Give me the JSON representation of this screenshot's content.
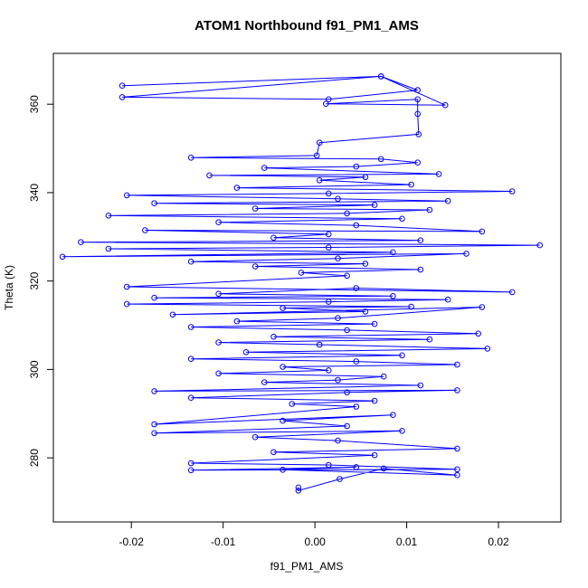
{
  "chart_data": {
    "type": "scatter",
    "title": "ATOM1 Northbound f91_PM1_AMS",
    "xlabel": "f91_PM1_AMS",
    "ylabel": "Theta (K)",
    "xlim": [
      -0.0285,
      0.0268
    ],
    "ylim": [
      265.5,
      371.5
    ],
    "xticks": [
      -0.02,
      -0.01,
      0.0,
      0.01,
      0.02
    ],
    "xtick_labels": [
      "-0.02",
      "-0.01",
      "0.00",
      "0.01",
      "0.02"
    ],
    "yticks": [
      280,
      300,
      320,
      340,
      360
    ],
    "ytick_labels": [
      "280",
      "300",
      "320",
      "340",
      "360"
    ],
    "grid": false,
    "legend": "none",
    "marker": "open-circle",
    "connected": true,
    "color": "#0000ff",
    "series": [
      {
        "values": [
          [
            -0.021,
            364.2
          ],
          [
            0.0072,
            366.3
          ],
          [
            0.0112,
            363.2
          ],
          [
            0.0015,
            361.1
          ],
          [
            -0.021,
            361.6
          ],
          [
            0.0072,
            366.3
          ],
          [
            0.0142,
            359.8
          ],
          [
            0.0012,
            360.1
          ],
          [
            0.0112,
            361.1
          ],
          [
            0.0112,
            357.8
          ],
          [
            0.0113,
            353.2
          ],
          [
            0.0005,
            351.3
          ],
          [
            0.0002,
            348.4
          ],
          [
            -0.0135,
            347.9
          ],
          [
            0.0072,
            347.6
          ],
          [
            0.0112,
            346.8
          ],
          [
            0.0045,
            345.9
          ],
          [
            -0.0055,
            345.6
          ],
          [
            0.0135,
            344.2
          ],
          [
            -0.0115,
            343.9
          ],
          [
            0.0055,
            343.5
          ],
          [
            0.0005,
            342.8
          ],
          [
            0.0105,
            341.8
          ],
          [
            -0.0085,
            341.1
          ],
          [
            0.0215,
            340.3
          ],
          [
            0.0015,
            339.8
          ],
          [
            -0.0205,
            339.4
          ],
          [
            0.0025,
            338.6
          ],
          [
            0.0145,
            338.1
          ],
          [
            -0.0175,
            337.6
          ],
          [
            0.0065,
            337.2
          ],
          [
            -0.0065,
            336.4
          ],
          [
            0.0125,
            336.1
          ],
          [
            0.0035,
            335.3
          ],
          [
            -0.0225,
            334.8
          ],
          [
            0.0095,
            334.1
          ],
          [
            -0.0105,
            333.3
          ],
          [
            0.0045,
            332.6
          ],
          [
            0.0182,
            331.2
          ],
          [
            -0.0185,
            331.5
          ],
          [
            0.0015,
            330.6
          ],
          [
            -0.0045,
            329.8
          ],
          [
            0.0115,
            329.2
          ],
          [
            -0.0255,
            328.8
          ],
          [
            0.0245,
            328.1
          ],
          [
            0.0015,
            327.6
          ],
          [
            -0.0225,
            327.3
          ],
          [
            0.0085,
            326.5
          ],
          [
            -0.0275,
            325.5
          ],
          [
            0.0165,
            326.2
          ],
          [
            0.0025,
            325.1
          ],
          [
            -0.0135,
            324.4
          ],
          [
            0.0055,
            323.9
          ],
          [
            -0.0065,
            323.3
          ],
          [
            0.0115,
            322.6
          ],
          [
            -0.0015,
            321.9
          ],
          [
            0.0035,
            321.2
          ],
          [
            -0.0205,
            318.7
          ],
          [
            0.0215,
            317.5
          ],
          [
            0.0045,
            318.4
          ],
          [
            -0.0105,
            317.1
          ],
          [
            0.0085,
            316.6
          ],
          [
            -0.0175,
            316.2
          ],
          [
            0.0145,
            315.8
          ],
          [
            0.0015,
            315.3
          ],
          [
            -0.0205,
            314.8
          ],
          [
            0.0105,
            314.2
          ],
          [
            -0.0035,
            313.9
          ],
          [
            0.0055,
            313.1
          ],
          [
            -0.0155,
            312.4
          ],
          [
            0.0182,
            314.1
          ],
          [
            0.0025,
            311.6
          ],
          [
            -0.0085,
            310.9
          ],
          [
            0.0065,
            310.3
          ],
          [
            -0.0135,
            309.6
          ],
          [
            0.0035,
            308.9
          ],
          [
            0.0178,
            308.1
          ],
          [
            -0.0045,
            307.4
          ],
          [
            0.0125,
            306.8
          ],
          [
            -0.0105,
            306.1
          ],
          [
            0.0005,
            305.6
          ],
          [
            0.0188,
            304.7
          ],
          [
            -0.0075,
            303.9
          ],
          [
            0.0095,
            303.2
          ],
          [
            -0.0135,
            302.4
          ],
          [
            0.0045,
            301.8
          ],
          [
            0.0155,
            301.1
          ],
          [
            -0.0035,
            300.6
          ],
          [
            0.0015,
            299.8
          ],
          [
            -0.0105,
            299.1
          ],
          [
            0.0075,
            298.4
          ],
          [
            0.0025,
            297.6
          ],
          [
            -0.0055,
            297.1
          ],
          [
            0.0115,
            296.4
          ],
          [
            -0.0175,
            295.1
          ],
          [
            0.0155,
            295.3
          ],
          [
            0.0035,
            294.8
          ],
          [
            -0.0135,
            293.6
          ],
          [
            0.0065,
            292.9
          ],
          [
            -0.0025,
            292.2
          ],
          [
            0.0045,
            291.6
          ],
          [
            -0.0175,
            287.6
          ],
          [
            0.0085,
            289.7
          ],
          [
            -0.0035,
            288.4
          ],
          [
            0.0035,
            287.2
          ],
          [
            -0.0175,
            285.6
          ],
          [
            0.0095,
            286.1
          ],
          [
            -0.0065,
            284.7
          ],
          [
            0.0025,
            283.9
          ],
          [
            0.0155,
            282.1
          ],
          [
            -0.0045,
            281.3
          ],
          [
            0.0065,
            280.6
          ],
          [
            -0.0135,
            278.8
          ],
          [
            0.0015,
            278.4
          ],
          [
            0.0155,
            277.4
          ],
          [
            -0.0135,
            277.2
          ],
          [
            0.0045,
            277.9
          ],
          [
            -0.0035,
            277.3
          ],
          [
            0.0155,
            276.1
          ],
          [
            0.0075,
            277.6
          ],
          [
            0.0027,
            275.2
          ],
          [
            -0.0018,
            272.6
          ],
          [
            -0.0018,
            273.3
          ]
        ]
      }
    ]
  }
}
